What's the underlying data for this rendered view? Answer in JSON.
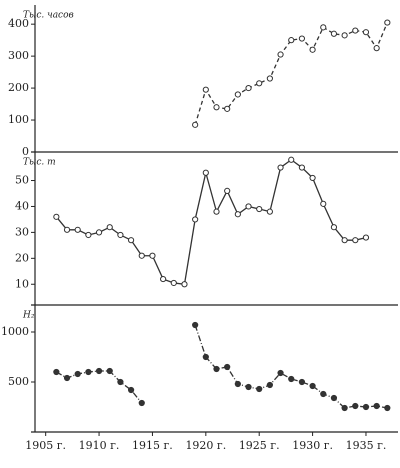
{
  "chart_data": [
    {
      "type": "line",
      "y_label": "Тыс. часов",
      "x": [
        1919,
        1920,
        1921,
        1922,
        1923,
        1924,
        1925,
        1926,
        1927,
        1928,
        1929,
        1930,
        1931,
        1932,
        1933,
        1934,
        1935,
        1936,
        1937
      ],
      "series": [
        {
          "color": "#333333",
          "line_style": "dashed",
          "marker": "open",
          "values": [
            85,
            195,
            140,
            135,
            180,
            200,
            215,
            230,
            305,
            350,
            355,
            320,
            390,
            370,
            365,
            380,
            375,
            325,
            405
          ]
        }
      ],
      "xlim": [
        1904,
        1938
      ],
      "ylim": [
        0,
        460
      ],
      "yticks": [
        0,
        100,
        200,
        300,
        400
      ]
    },
    {
      "type": "line",
      "y_label": "Тыс. т",
      "x": [
        1906,
        1907,
        1908,
        1909,
        1910,
        1911,
        1912,
        1913,
        1914,
        1915,
        1916,
        1917,
        1918,
        1919,
        1920,
        1921,
        1922,
        1923,
        1924,
        1925,
        1926,
        1927,
        1928,
        1929,
        1930,
        1931,
        1932,
        1933,
        1934,
        1935
      ],
      "series": [
        {
          "color": "#333333",
          "line_style": "solid",
          "marker": "open",
          "values": [
            36,
            31,
            31,
            29,
            30,
            32,
            29,
            27,
            21,
            21,
            12,
            10.5,
            10,
            35,
            53,
            38,
            46,
            37,
            40,
            39,
            38,
            55,
            58,
            55,
            51,
            41,
            32,
            27,
            27,
            28
          ]
        }
      ],
      "xlim": [
        1904,
        1938
      ],
      "ylim": [
        2,
        61
      ],
      "yticks": [
        10,
        20,
        30,
        40,
        50
      ]
    },
    {
      "type": "line",
      "y_label": "Н₂",
      "x": [
        1906,
        1907,
        1908,
        1909,
        1910,
        1911,
        1912,
        1913,
        1914,
        1915,
        1916,
        1917,
        1918,
        1919,
        1920,
        1921,
        1922,
        1923,
        1924,
        1925,
        1926,
        1927,
        1928,
        1929,
        1930,
        1931,
        1932,
        1933,
        1934,
        1935,
        1936,
        1937
      ],
      "series": [
        {
          "color": "#333333",
          "line_style": "dashdot",
          "marker": "filled",
          "values": [
            600,
            540,
            580,
            600,
            610,
            610,
            500,
            420,
            290,
            null,
            null,
            null,
            null,
            1070,
            750,
            630,
            650,
            480,
            450,
            430,
            470,
            590,
            530,
            500,
            460,
            380,
            340,
            240,
            260,
            250,
            260,
            240
          ]
        }
      ],
      "xlim": [
        1904,
        1938
      ],
      "ylim": [
        0,
        1270
      ],
      "yticks": [
        500,
        1000
      ],
      "xticks": [
        {
          "value": 1905,
          "label": "1905 г."
        },
        {
          "value": 1910,
          "label": "1910 г."
        },
        {
          "value": 1915,
          "label": "1915 г."
        },
        {
          "value": 1920,
          "label": "1920 г."
        },
        {
          "value": 1925,
          "label": "1925 г."
        },
        {
          "value": 1930,
          "label": "1930 г."
        },
        {
          "value": 1935,
          "label": "1935 г."
        }
      ]
    }
  ]
}
